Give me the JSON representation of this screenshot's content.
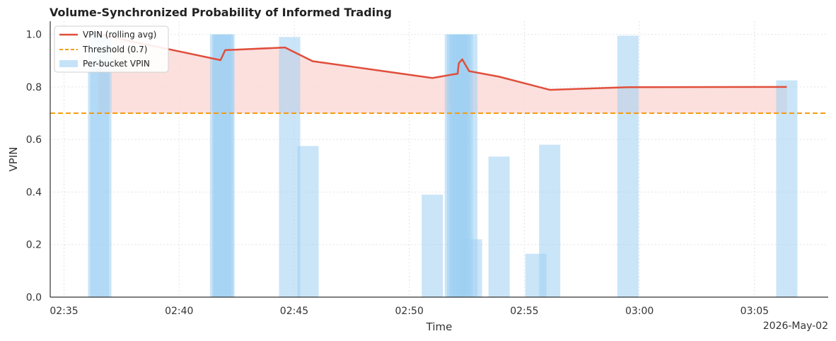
{
  "chart_data": {
    "type": "bar",
    "title": "Volume-Synchronized Probability of Informed Trading",
    "xlabel": "Time",
    "ylabel": "VPIN",
    "x_offset_label": "2026-May-02",
    "ylim": [
      0,
      1.05
    ],
    "xlim": [
      "02:34.4",
      "03:08.2"
    ],
    "x_ticks": [
      "02:35",
      "02:40",
      "02:45",
      "02:50",
      "02:55",
      "03:00",
      "03:05"
    ],
    "y_ticks": [
      "0.0",
      "0.2",
      "0.4",
      "0.6",
      "0.8",
      "1.0"
    ],
    "threshold": 0.7,
    "grid": true,
    "legend_position": "top-left",
    "legend": [
      "VPIN (rolling avg)",
      "Threshold (0.7)",
      "Per-bucket VPIN"
    ],
    "colors": {
      "rolling": "#e04e3b",
      "threshold": "#f39c12",
      "bars": "#9fd0f3",
      "fill": "#fadbd8"
    },
    "series": [
      {
        "name": "Per-bucket VPIN",
        "kind": "bar",
        "points": [
          {
            "t": "02:36.5",
            "v": 1.0
          },
          {
            "t": "02:36.6",
            "v": 1.0
          },
          {
            "t": "02:41.8",
            "v": 1.0
          },
          {
            "t": "02:41.9",
            "v": 1.0
          },
          {
            "t": "02:41.95",
            "v": 1.0
          },
          {
            "t": "02:44.8",
            "v": 0.99
          },
          {
            "t": "02:45.6",
            "v": 0.575
          },
          {
            "t": "02:51.0",
            "v": 0.39
          },
          {
            "t": "02:52.0",
            "v": 1.0
          },
          {
            "t": "02:52.1",
            "v": 1.0
          },
          {
            "t": "02:52.2",
            "v": 1.0
          },
          {
            "t": "02:52.3",
            "v": 1.0
          },
          {
            "t": "02:52.5",
            "v": 1.0
          },
          {
            "t": "02:52.7",
            "v": 0.22
          },
          {
            "t": "02:53.9",
            "v": 0.535
          },
          {
            "t": "02:55.5",
            "v": 0.165
          },
          {
            "t": "02:56.1",
            "v": 0.58
          },
          {
            "t": "02:59.5",
            "v": 0.995
          },
          {
            "t": "03:06.4",
            "v": 0.825
          }
        ]
      },
      {
        "name": "VPIN (rolling avg)",
        "kind": "line",
        "points": [
          {
            "t": "02:36.5",
            "v": 1.0
          },
          {
            "t": "02:41.8",
            "v": 0.902
          },
          {
            "t": "02:42.0",
            "v": 0.94
          },
          {
            "t": "02:44.6",
            "v": 0.95
          },
          {
            "t": "02:45.8",
            "v": 0.898
          },
          {
            "t": "02:51.0",
            "v": 0.834
          },
          {
            "t": "02:52.0",
            "v": 0.849
          },
          {
            "t": "02:52.1",
            "v": 0.85
          },
          {
            "t": "02:52.15",
            "v": 0.89
          },
          {
            "t": "02:52.3",
            "v": 0.905
          },
          {
            "t": "02:52.6",
            "v": 0.86
          },
          {
            "t": "02:53.9",
            "v": 0.839
          },
          {
            "t": "02:56.1",
            "v": 0.789
          },
          {
            "t": "02:59.5",
            "v": 0.799
          },
          {
            "t": "03:06.4",
            "v": 0.8
          }
        ]
      }
    ]
  }
}
